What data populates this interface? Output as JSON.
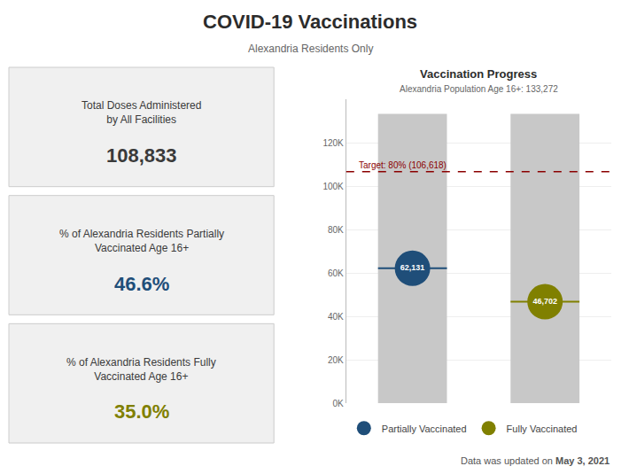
{
  "chart_data": {
    "type": "bar",
    "title": "COVID-19 Vaccinations",
    "subtitle": "Alexandria Residents Only",
    "background": "#ffffff",
    "panels": {
      "color": "#f0f0f0",
      "border_color": "#cccccc",
      "items": [
        {
          "lines": [
            "Total Doses Administered",
            "by All Facilities"
          ],
          "text": "108,833",
          "color": "#3a3a3a"
        },
        {
          "lines": [
            "% of Alexandria Residents Partially",
            "Vaccinated Age 16+"
          ],
          "text": "46.6%",
          "color": "#1f4e79"
        },
        {
          "lines": [
            "% of Alexandria Residents Fully",
            "Vaccinated Age 16+"
          ],
          "text": "35.0%",
          "color": "#808000"
        }
      ]
    },
    "chart_title": "Vaccination Progress",
    "chart_subtitle": "Alexandria Population Age 16+: 133,272",
    "categories": [
      null,
      null
    ],
    "bars": {
      "values": [
        133272,
        133272
      ],
      "color": "#c8c8c8"
    },
    "series": [
      {
        "name": "Partially Vaccinated",
        "type": "scatter",
        "marker": "circle",
        "color": "#1f4e79",
        "values": [
          62131,
          null
        ],
        "value_labels": [
          "62,131",
          null
        ]
      },
      {
        "name": "Fully Vaccinated",
        "type": "scatter",
        "marker": "circle",
        "color": "#808000",
        "values": [
          null,
          46702
        ],
        "value_labels": [
          null,
          "46,702"
        ]
      }
    ],
    "data_labels": true,
    "reference_line": {
      "value": 106618,
      "label": "Target: 80% (106,618)",
      "color": "#8b0000",
      "line_style": "dashed"
    },
    "ylim": [
      0,
      140000
    ],
    "yticks": [
      {
        "value": 0,
        "label": "0K"
      },
      {
        "value": 20000,
        "label": "20K"
      },
      {
        "value": 40000,
        "label": "40K"
      },
      {
        "value": 60000,
        "label": "60K"
      },
      {
        "value": 80000,
        "label": "80K"
      },
      {
        "value": 100000,
        "label": "100K"
      },
      {
        "value": 120000,
        "label": "120K"
      }
    ],
    "grid": true,
    "legend": "bottom",
    "footer": {
      "text": "Data was updated on",
      "bold": "May 3, 2021"
    }
  }
}
